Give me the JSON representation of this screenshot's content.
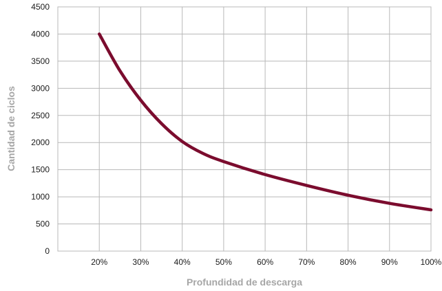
{
  "chart_data": {
    "type": "line",
    "xlabel": "Profundidad de descarga",
    "ylabel": "Cantidad de ciclos",
    "x_tick_labels": [
      "20%",
      "30%",
      "40%",
      "50%",
      "60%",
      "70%",
      "80%",
      "90%",
      "100%"
    ],
    "y_tick_labels": [
      "0",
      "500",
      "1000",
      "1500",
      "2000",
      "2500",
      "3000",
      "3500",
      "4000",
      "4500"
    ],
    "xlim": [
      10,
      100
    ],
    "ylim": [
      0,
      4500
    ],
    "grid": true,
    "series": [
      {
        "color": "#7b0c2e",
        "x": [
          20,
          25,
          30,
          35,
          40,
          45,
          50,
          60,
          70,
          80,
          90,
          100
        ],
        "y": [
          4000,
          3320,
          2780,
          2350,
          2020,
          1800,
          1650,
          1410,
          1210,
          1030,
          880,
          760
        ]
      }
    ]
  }
}
